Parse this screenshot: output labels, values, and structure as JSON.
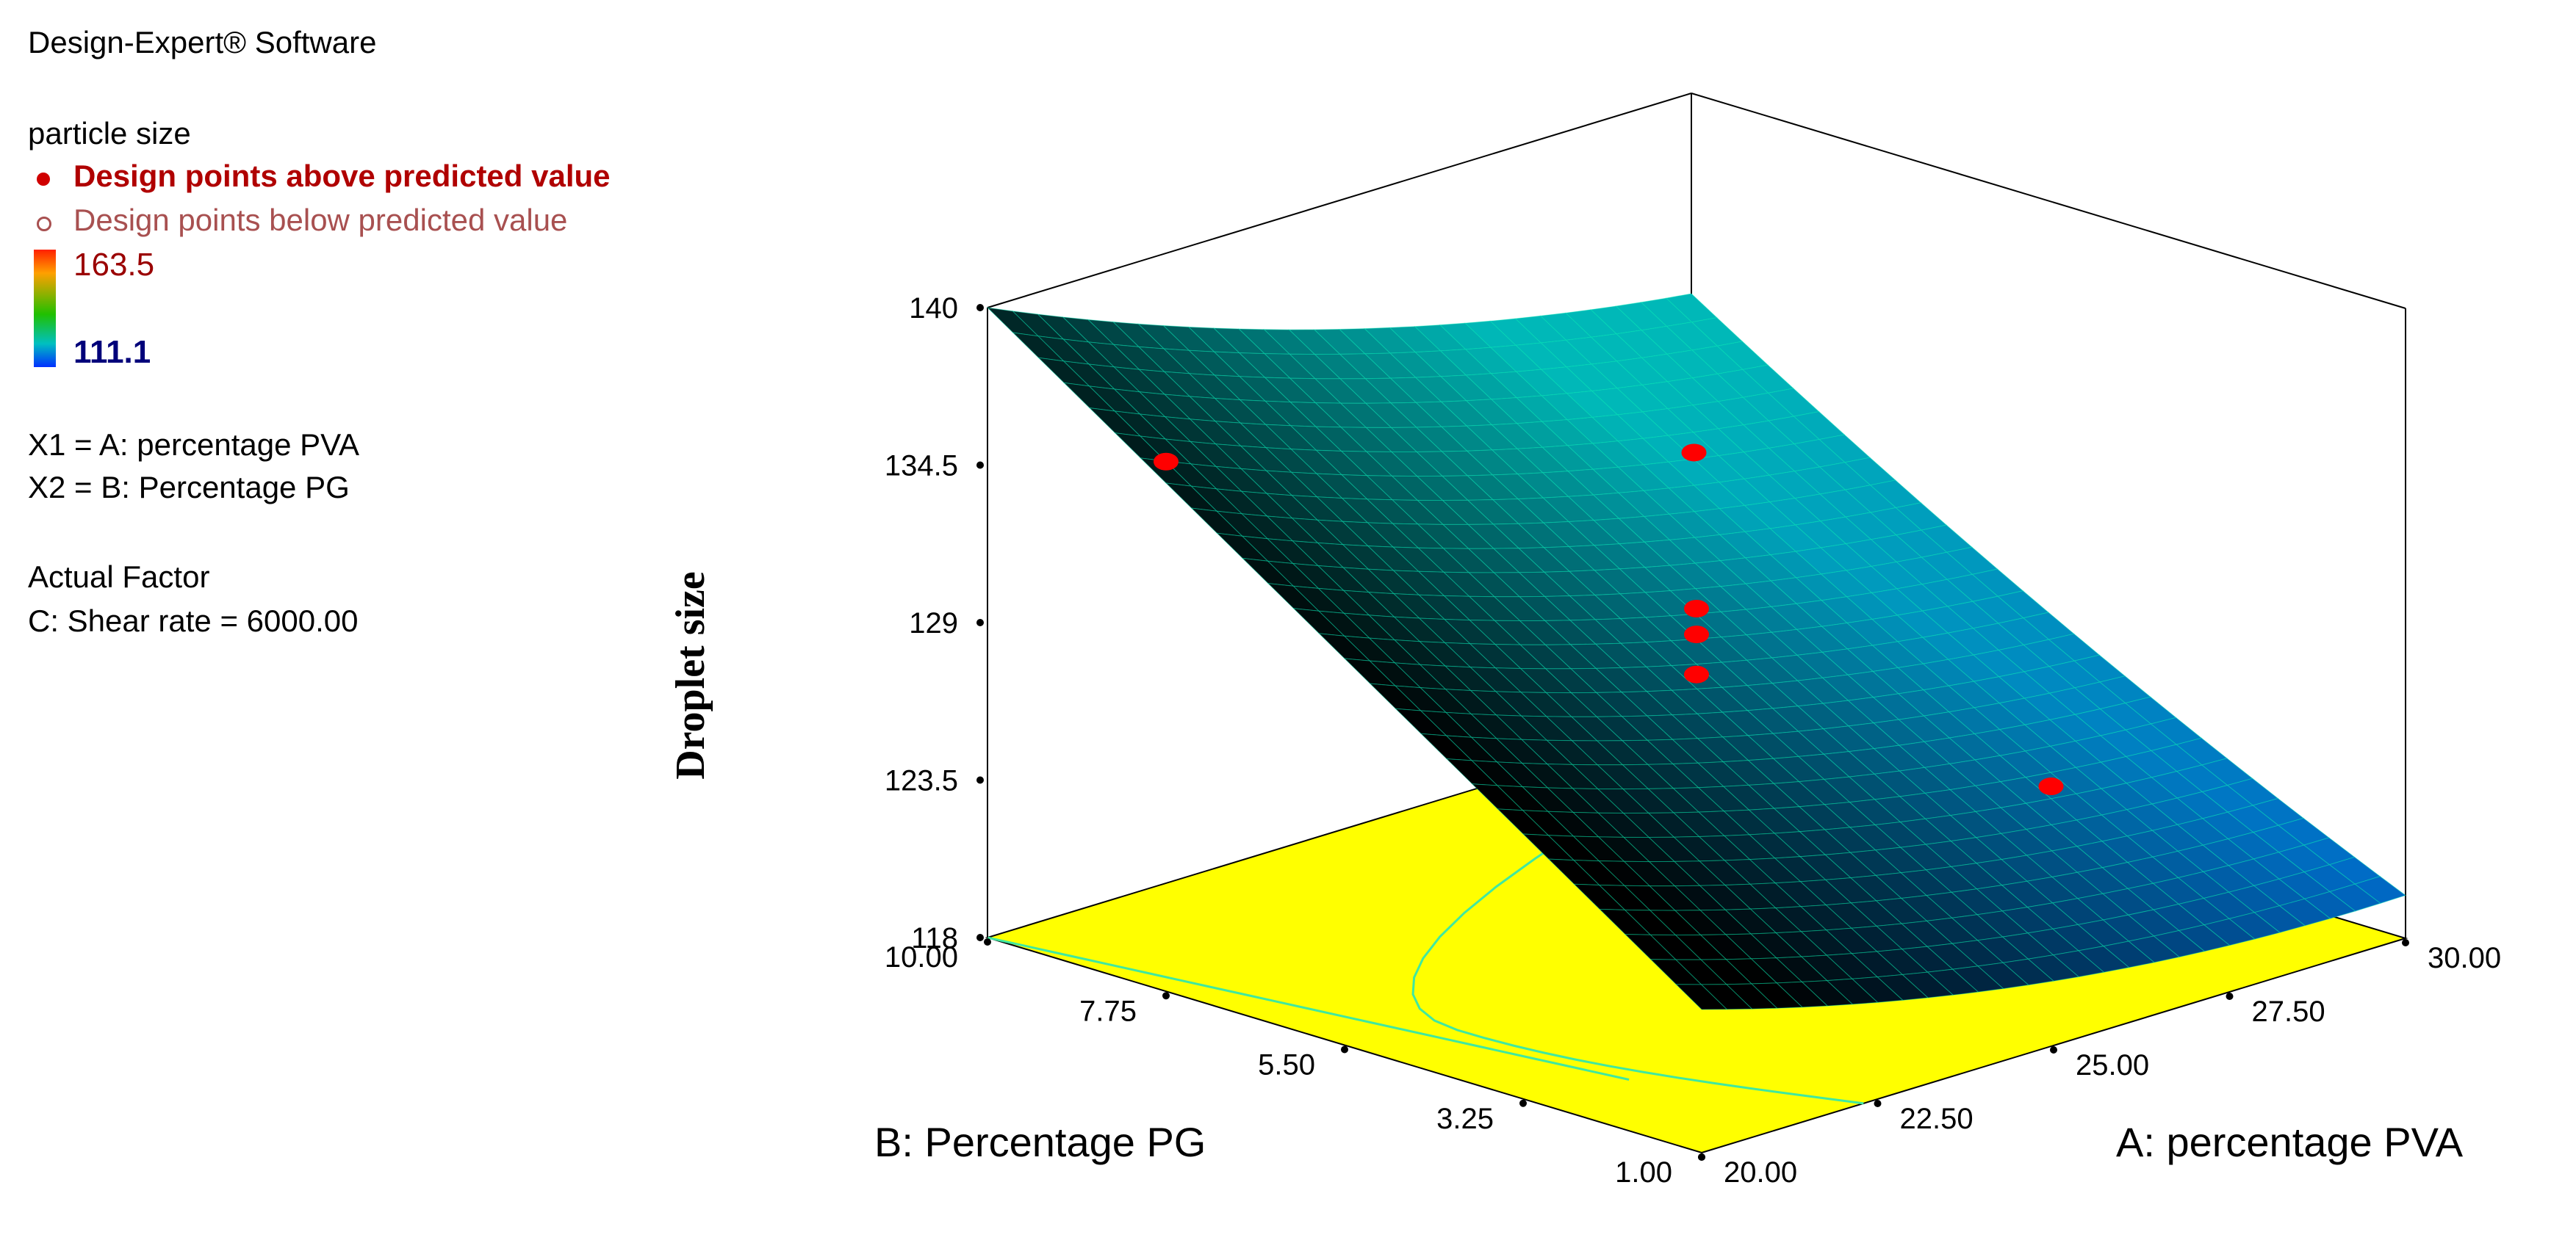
{
  "software_title": "Design-Expert® Software",
  "legend": {
    "response": "particle size",
    "above_label": "Design points above predicted value",
    "below_label": "Design points below predicted value",
    "scale_max": "163.5",
    "scale_min": "111.1",
    "x1_label": "X1 = A: percentage PVA",
    "x2_label": "X2 = B: Percentage PG",
    "actual_factor_heading": "Actual Factor",
    "actual_factor_value": "C: Shear rate = 6000.00"
  },
  "colors": {
    "floor": "#ffff00",
    "floor_contour": "#40e8a0",
    "surface_front": "#000000",
    "surface_back": "#00b8b8",
    "surface_low": "#0060c8",
    "design_point": "#ff0000"
  },
  "chart_data": {
    "type": "surface3d",
    "zlabel": "Droplet size",
    "xlabel": "A: percentage PVA",
    "ylabel": "B: Percentage PG",
    "x_range": [
      20,
      30
    ],
    "y_range": [
      1,
      10
    ],
    "z_range": [
      118,
      140
    ],
    "x_ticks": [
      "20.00",
      "22.50",
      "25.00",
      "27.50",
      "30.00"
    ],
    "y_ticks": [
      "1.00",
      "3.25",
      "5.50",
      "7.75",
      "10.00"
    ],
    "z_ticks": [
      "118",
      "123.5",
      "129",
      "134.5",
      "140"
    ],
    "surface_corners": [
      {
        "x": 20,
        "y": 10,
        "z": 140
      },
      {
        "x": 20,
        "y": 1,
        "z": 123
      },
      {
        "x": 30,
        "y": 1,
        "z": 119.5
      },
      {
        "x": 30,
        "y": 10,
        "z": 133
      }
    ],
    "design_points": [
      {
        "x": 20,
        "y": 7.75,
        "z": 136.5
      },
      {
        "x": 25,
        "y": 5.5,
        "z": 129.5
      },
      {
        "x": 25,
        "y": 5.5,
        "z": 128.6
      },
      {
        "x": 25,
        "y": 5.5,
        "z": 127.2
      },
      {
        "x": 27.5,
        "y": 7.75,
        "z": 131.2
      },
      {
        "x": 27.5,
        "y": 3.25,
        "z": 123.3
      }
    ]
  }
}
